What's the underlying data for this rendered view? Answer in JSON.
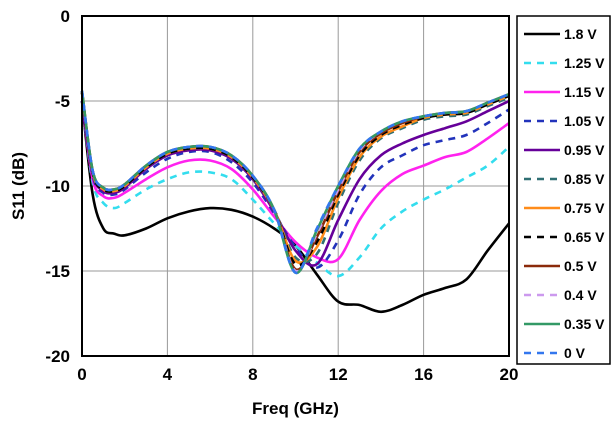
{
  "chart_data": {
    "type": "line",
    "title": "",
    "xlabel": "Freq (GHz)",
    "ylabel": "S11 (dB)",
    "xlim": [
      0,
      20
    ],
    "ylim": [
      -20,
      0
    ],
    "x_ticks": [
      0,
      4,
      8,
      12,
      16,
      20
    ],
    "x_tick_labels": [
      "0",
      "4",
      "8",
      "12",
      "16",
      "20"
    ],
    "y_ticks": [
      0,
      -5,
      -10,
      -15,
      -20
    ],
    "y_tick_labels": [
      "0",
      "-5",
      "-10",
      "-15",
      "-20"
    ],
    "grid": true,
    "legend_position": "right",
    "series": [
      {
        "name": "1.8 V",
        "color": "#000000",
        "dash": "solid",
        "x": [
          0,
          0.5,
          1,
          1.5,
          2,
          3,
          4,
          5,
          6,
          7,
          8,
          9,
          10,
          11,
          12,
          13,
          14,
          15,
          16,
          17,
          18,
          19,
          20
        ],
        "y": [
          -5,
          -10.5,
          -12.5,
          -12.8,
          -12.9,
          -12.5,
          -11.9,
          -11.5,
          -11.3,
          -11.4,
          -11.8,
          -12.5,
          -13.5,
          -15.2,
          -16.8,
          -17.0,
          -17.4,
          -17.0,
          -16.4,
          -16.0,
          -15.5,
          -13.8,
          -12.2
        ]
      },
      {
        "name": "1.25 V",
        "color": "#33ddee",
        "dash": "dash",
        "x": [
          0,
          0.5,
          1,
          1.5,
          2,
          3,
          4,
          5,
          6,
          7,
          8,
          9,
          10,
          11,
          12,
          13,
          14,
          15,
          16,
          17,
          18,
          19,
          20
        ],
        "y": [
          -5,
          -9.8,
          -11.0,
          -11.3,
          -11.0,
          -10.2,
          -9.6,
          -9.2,
          -9.2,
          -9.6,
          -10.8,
          -12.2,
          -13.5,
          -14.5,
          -15.3,
          -14.2,
          -12.5,
          -11.5,
          -10.8,
          -10.2,
          -9.5,
          -8.8,
          -7.7
        ]
      },
      {
        "name": "1.15 V",
        "color": "#ff22ee",
        "dash": "solid",
        "x": [
          0,
          0.5,
          1,
          1.5,
          2,
          3,
          4,
          5,
          6,
          7,
          8,
          9,
          10,
          11,
          12,
          13,
          14,
          15,
          16,
          17,
          18,
          19,
          20
        ],
        "y": [
          -5,
          -9.6,
          -10.6,
          -10.7,
          -10.4,
          -9.6,
          -8.9,
          -8.5,
          -8.5,
          -9.0,
          -10.2,
          -11.8,
          -13.3,
          -14.2,
          -14.3,
          -12.0,
          -10.3,
          -9.3,
          -8.8,
          -8.3,
          -8.0,
          -7.2,
          -6.3
        ]
      },
      {
        "name": "1.05 V",
        "color": "#2233bb",
        "dash": "dash",
        "x": [
          0,
          0.5,
          1,
          1.5,
          2,
          3,
          4,
          5,
          6,
          7,
          8,
          9,
          10,
          11,
          12,
          13,
          14,
          15,
          16,
          17,
          18,
          19,
          20
        ],
        "y": [
          -5,
          -9.4,
          -10.4,
          -10.5,
          -10.2,
          -9.2,
          -8.4,
          -8.0,
          -8.0,
          -8.6,
          -9.8,
          -11.6,
          -13.6,
          -14.8,
          -13.2,
          -10.5,
          -8.9,
          -8.2,
          -7.6,
          -7.3,
          -7.0,
          -6.3,
          -5.5
        ]
      },
      {
        "name": "0.95 V",
        "color": "#660099",
        "dash": "solid",
        "x": [
          0,
          0.5,
          1,
          1.5,
          2,
          3,
          4,
          5,
          6,
          7,
          8,
          9,
          10,
          11,
          12,
          13,
          14,
          15,
          16,
          17,
          18,
          19,
          20
        ],
        "y": [
          -5,
          -9.3,
          -10.3,
          -10.4,
          -10.1,
          -9.0,
          -8.2,
          -7.9,
          -7.9,
          -8.4,
          -9.6,
          -11.5,
          -13.8,
          -14.6,
          -12.0,
          -9.6,
          -8.2,
          -7.5,
          -7.0,
          -6.6,
          -6.2,
          -5.6,
          -5.0
        ]
      },
      {
        "name": "0.85 V",
        "color": "#2f6f73",
        "dash": "dash",
        "x": [
          0,
          0.5,
          1,
          1.5,
          2,
          3,
          4,
          5,
          6,
          7,
          8,
          9,
          10,
          11,
          12,
          13,
          14,
          15,
          16,
          17,
          18,
          19,
          20
        ],
        "y": [
          -4.5,
          -9.2,
          -10.2,
          -10.3,
          -10.0,
          -8.9,
          -8.1,
          -7.8,
          -7.8,
          -8.3,
          -9.5,
          -11.4,
          -14.2,
          -14.0,
          -11.0,
          -8.5,
          -7.2,
          -6.6,
          -6.1,
          -5.9,
          -5.8,
          -5.3,
          -4.8
        ]
      },
      {
        "name": "0.75 V",
        "color": "#ff8c1a",
        "dash": "solid",
        "x": [
          0,
          0.5,
          1,
          1.5,
          2,
          3,
          4,
          5,
          6,
          7,
          8,
          9,
          10,
          11,
          12,
          13,
          14,
          15,
          16,
          17,
          18,
          19,
          20
        ],
        "y": [
          -4.5,
          -9.2,
          -10.2,
          -10.3,
          -10.0,
          -8.9,
          -8.1,
          -7.8,
          -7.8,
          -8.3,
          -9.5,
          -11.4,
          -14.4,
          -13.6,
          -10.7,
          -8.3,
          -7.1,
          -6.5,
          -6.0,
          -5.8,
          -5.7,
          -5.2,
          -4.7
        ]
      },
      {
        "name": "0.65 V",
        "color": "#000000",
        "dash": "dash",
        "x": [
          0,
          0.5,
          1,
          1.5,
          2,
          3,
          4,
          5,
          6,
          7,
          8,
          9,
          10,
          11,
          12,
          13,
          14,
          15,
          16,
          17,
          18,
          19,
          20
        ],
        "y": [
          -4.5,
          -9.2,
          -10.2,
          -10.3,
          -10.0,
          -8.9,
          -8.1,
          -7.8,
          -7.8,
          -8.3,
          -9.5,
          -11.4,
          -14.6,
          -13.3,
          -10.5,
          -8.2,
          -7.0,
          -6.4,
          -6.0,
          -5.8,
          -5.7,
          -5.2,
          -4.7
        ]
      },
      {
        "name": "0.5 V",
        "color": "#8b2a0a",
        "dash": "solid",
        "x": [
          0,
          0.5,
          1,
          1.5,
          2,
          3,
          4,
          5,
          6,
          7,
          8,
          9,
          10,
          11,
          12,
          13,
          14,
          15,
          16,
          17,
          18,
          19,
          20
        ],
        "y": [
          -4.4,
          -9.1,
          -10.1,
          -10.2,
          -9.9,
          -8.8,
          -8.0,
          -7.7,
          -7.7,
          -8.2,
          -9.4,
          -11.4,
          -14.9,
          -13.0,
          -10.3,
          -8.0,
          -6.9,
          -6.3,
          -5.9,
          -5.7,
          -5.6,
          -5.1,
          -4.6
        ]
      },
      {
        "name": "0.4 V",
        "color": "#cc99ee",
        "dash": "dash",
        "x": [
          0,
          0.5,
          1,
          1.5,
          2,
          3,
          4,
          5,
          6,
          7,
          8,
          9,
          10,
          11,
          12,
          13,
          14,
          15,
          16,
          17,
          18,
          19,
          20
        ],
        "y": [
          -4.4,
          -9.1,
          -10.1,
          -10.2,
          -9.9,
          -8.8,
          -8.0,
          -7.7,
          -7.7,
          -8.2,
          -9.4,
          -11.4,
          -15.0,
          -12.8,
          -10.2,
          -7.9,
          -6.8,
          -6.2,
          -5.9,
          -5.7,
          -5.6,
          -5.1,
          -4.6
        ]
      },
      {
        "name": "0.35 V",
        "color": "#339966",
        "dash": "solid",
        "x": [
          0,
          0.5,
          1,
          1.5,
          2,
          3,
          4,
          5,
          6,
          7,
          8,
          9,
          10,
          11,
          12,
          13,
          14,
          15,
          16,
          17,
          18,
          19,
          20
        ],
        "y": [
          -4.4,
          -9.1,
          -10.1,
          -10.2,
          -9.9,
          -8.8,
          -8.0,
          -7.7,
          -7.7,
          -8.2,
          -9.4,
          -11.4,
          -15.1,
          -12.6,
          -10.0,
          -7.8,
          -6.8,
          -6.2,
          -5.9,
          -5.7,
          -5.6,
          -5.1,
          -4.6
        ]
      },
      {
        "name": "0 V",
        "color": "#3377ee",
        "dash": "dash",
        "x": [
          0,
          0.5,
          1,
          1.5,
          2,
          3,
          4,
          5,
          6,
          7,
          8,
          9,
          10,
          11,
          12,
          13,
          14,
          15,
          16,
          17,
          18,
          19,
          20
        ],
        "y": [
          -4.4,
          -9.1,
          -10.1,
          -10.2,
          -9.9,
          -8.8,
          -8.0,
          -7.7,
          -7.7,
          -8.2,
          -9.4,
          -11.4,
          -15.1,
          -12.5,
          -10.0,
          -7.8,
          -6.8,
          -6.2,
          -5.9,
          -5.7,
          -5.6,
          -5.1,
          -4.6
        ]
      }
    ]
  }
}
